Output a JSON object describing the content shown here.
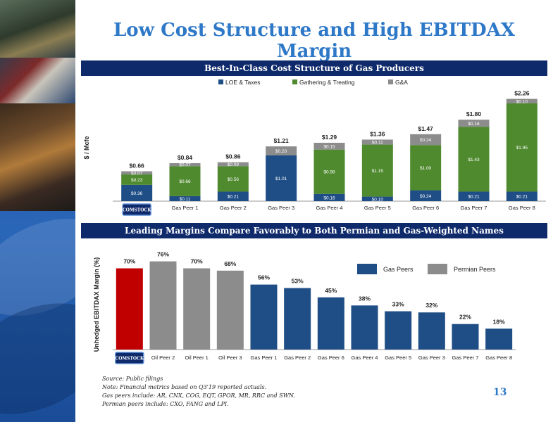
{
  "title": "Low Cost Structure and High EBITDAX Margin",
  "page_number": "13",
  "logo_text": "COMSTOCK",
  "footnotes": [
    "Source: Public filings",
    "Note: Financial metrics based on Q3'19 reported actuals.",
    "Gas peers include: AR, CNX, COG, EQT, GPOR, MR, RRC and SWN.",
    "Permian peers include: CXO, FANG and LPI."
  ],
  "chart_data": [
    {
      "type": "bar",
      "stacked": true,
      "title": "Best-In-Class Cost Structure of Gas Producers",
      "ylabel": "$ / Mcfe",
      "xlabel": "",
      "categories": [
        "",
        "Gas Peer 1",
        "Gas Peer 2",
        "Gas Peer 3",
        "Gas Peer 4",
        "Gas Peer 5",
        "Gas Peer 6",
        "Gas Peer 7",
        "Gas Peer 8"
      ],
      "series": [
        {
          "name": "LOE & Taxes",
          "color": "#1f4e86",
          "values": [
            0.36,
            0.11,
            0.21,
            1.01,
            0.16,
            0.1,
            0.24,
            0.21,
            0.21
          ]
        },
        {
          "name": "Gathering & Treating",
          "color": "#4f8a2f",
          "values": [
            0.23,
            0.66,
            0.56,
            0,
            0.98,
            1.15,
            1.0,
            1.43,
            1.95
          ]
        },
        {
          "name": "G&A",
          "color": "#8c8c8c",
          "values": [
            0.07,
            0.07,
            0.09,
            0.2,
            0.15,
            0.11,
            0.24,
            0.16,
            0.1
          ]
        }
      ],
      "totals": [
        0.66,
        0.84,
        0.86,
        1.21,
        1.29,
        1.36,
        1.47,
        1.8,
        2.26
      ],
      "ylim": [
        0,
        2.3
      ],
      "legend_position": "top-center",
      "grid": false
    },
    {
      "type": "bar",
      "title": "Leading Margins Compare Favorably to Both Permian and Gas-Weighted Names",
      "ylabel": "Unhedged EBITDAX Margin (%)",
      "xlabel": "",
      "categories": [
        "",
        "Oil Peer 2",
        "Oil Peer 1",
        "Oil Peer 3",
        "Gas Peer 1",
        "Gas Peer 2",
        "Gas Peer 6",
        "Gas Peer 4",
        "Gas Peer 5",
        "Gas Peer 3",
        "Gas Peer 7",
        "Gas Peer 8"
      ],
      "values": [
        70,
        76,
        70,
        68,
        56,
        53,
        45,
        38,
        33,
        32,
        22,
        18
      ],
      "value_labels": [
        "70%",
        "76%",
        "70%",
        "68%",
        "56%",
        "53%",
        "45%",
        "38%",
        "33%",
        "32%",
        "22%",
        "18%"
      ],
      "colors": [
        "#c00000",
        "#8c8c8c",
        "#8c8c8c",
        "#8c8c8c",
        "#1f4e86",
        "#1f4e86",
        "#1f4e86",
        "#1f4e86",
        "#1f4e86",
        "#1f4e86",
        "#1f4e86",
        "#1f4e86"
      ],
      "legend": [
        {
          "name": "Gas Peers",
          "color": "#1f4e86"
        },
        {
          "name": "Permian Peers",
          "color": "#8c8c8c"
        }
      ],
      "ylim": [
        0,
        80
      ],
      "legend_position": "top-right",
      "grid": false
    }
  ]
}
